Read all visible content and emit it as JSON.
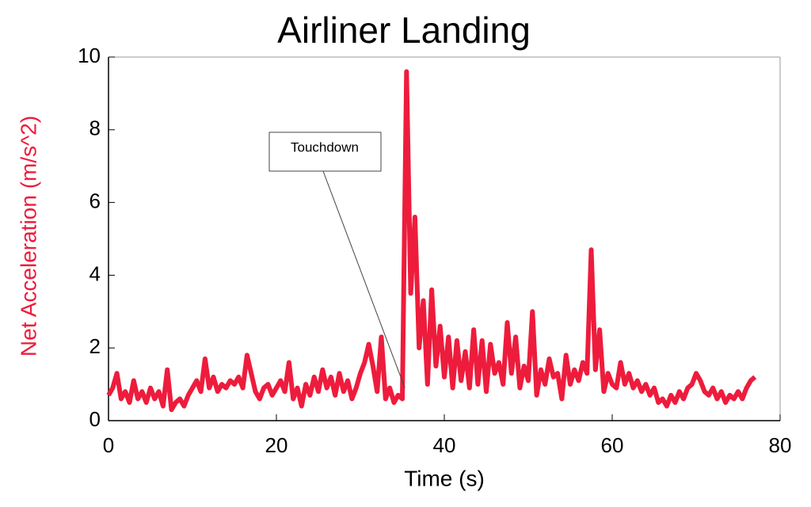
{
  "chart_data": {
    "type": "line",
    "title": "Airliner Landing",
    "x_label": "Time (s)",
    "y_label": "Net Acceleration (m/s^2)",
    "color": "#ee1c3c",
    "x": [
      0,
      0.5,
      1,
      1.5,
      2,
      2.5,
      3,
      3.5,
      4,
      4.5,
      5,
      5.5,
      6,
      6.5,
      7,
      7.5,
      8,
      8.5,
      9,
      9.5,
      10,
      10.5,
      11,
      11.5,
      12,
      12.5,
      13,
      13.5,
      14,
      14.5,
      15,
      15.5,
      16,
      16.5,
      17,
      17.5,
      18,
      18.5,
      19,
      19.5,
      20,
      20.5,
      21,
      21.5,
      22,
      22.5,
      23,
      23.5,
      24,
      24.5,
      25,
      25.5,
      26,
      26.5,
      27,
      27.5,
      28,
      28.5,
      29,
      29.5,
      30,
      30.5,
      31,
      31.5,
      32,
      32.5,
      33,
      33.5,
      34,
      34.5,
      35,
      35.5,
      36,
      36.5,
      37,
      37.5,
      38,
      38.5,
      39,
      39.5,
      40,
      40.5,
      41,
      41.5,
      42,
      42.5,
      43,
      43.5,
      44,
      44.5,
      45,
      45.5,
      46,
      46.5,
      47,
      47.5,
      48,
      48.5,
      49,
      49.5,
      50,
      50.5,
      51,
      51.5,
      52,
      52.5,
      53,
      53.5,
      54,
      54.5,
      55,
      55.5,
      56,
      56.5,
      57,
      57.5,
      58,
      58.5,
      59,
      59.5,
      60,
      60.5,
      61,
      61.5,
      62,
      62.5,
      63,
      63.5,
      64,
      64.5,
      65,
      65.5,
      66,
      66.5,
      67,
      67.5,
      68,
      68.5,
      69,
      69.5,
      70,
      70.5,
      71,
      71.5,
      72,
      72.5,
      73,
      73.5,
      74,
      74.5,
      75,
      75.5,
      76,
      76.5,
      77
    ],
    "values": [
      0.7,
      0.9,
      1.3,
      0.6,
      0.8,
      0.5,
      1.1,
      0.6,
      0.8,
      0.5,
      0.9,
      0.6,
      0.8,
      0.4,
      1.4,
      0.3,
      0.5,
      0.6,
      0.4,
      0.7,
      0.9,
      1.1,
      0.8,
      1.7,
      0.9,
      1.2,
      0.8,
      1.0,
      0.9,
      1.1,
      1.0,
      1.2,
      0.9,
      1.8,
      1.3,
      0.8,
      0.6,
      0.9,
      1.0,
      0.7,
      0.9,
      1.1,
      0.8,
      1.6,
      0.6,
      0.9,
      0.4,
      1.0,
      0.7,
      1.2,
      0.8,
      1.4,
      0.9,
      1.2,
      0.7,
      1.3,
      0.8,
      1.1,
      0.6,
      0.9,
      1.3,
      1.6,
      2.1,
      1.5,
      0.8,
      2.3,
      0.6,
      0.9,
      0.5,
      0.7,
      0.6,
      9.6,
      3.5,
      5.6,
      2.0,
      3.3,
      1.0,
      3.6,
      1.5,
      2.6,
      1.2,
      2.3,
      0.9,
      2.2,
      1.1,
      1.9,
      0.9,
      2.5,
      1.0,
      2.2,
      0.8,
      2.1,
      1.3,
      1.6,
      1.0,
      2.7,
      1.3,
      2.3,
      0.9,
      1.5,
      1.1,
      3.0,
      0.7,
      1.4,
      1.0,
      1.7,
      1.2,
      1.3,
      0.6,
      1.8,
      1.0,
      1.4,
      1.1,
      1.6,
      1.3,
      4.7,
      1.4,
      2.5,
      0.8,
      1.3,
      1.0,
      0.9,
      1.6,
      1.0,
      1.3,
      0.9,
      1.1,
      0.8,
      1.0,
      0.7,
      0.9,
      0.5,
      0.6,
      0.4,
      0.7,
      0.5,
      0.8,
      0.6,
      0.9,
      1.0,
      1.3,
      1.1,
      0.8,
      0.7,
      0.9,
      0.6,
      0.8,
      0.5,
      0.7,
      0.6,
      0.8,
      0.6,
      0.9,
      1.1,
      1.2
    ],
    "xlim": [
      0,
      80
    ],
    "xticks": [
      0,
      20,
      40,
      60,
      80
    ],
    "ylim": [
      0,
      10
    ],
    "yticks": [
      0,
      2,
      4,
      6,
      8,
      10
    ],
    "annotations": [
      {
        "text": "Touchdown",
        "x": 35.3,
        "y": 0.9
      }
    ]
  }
}
